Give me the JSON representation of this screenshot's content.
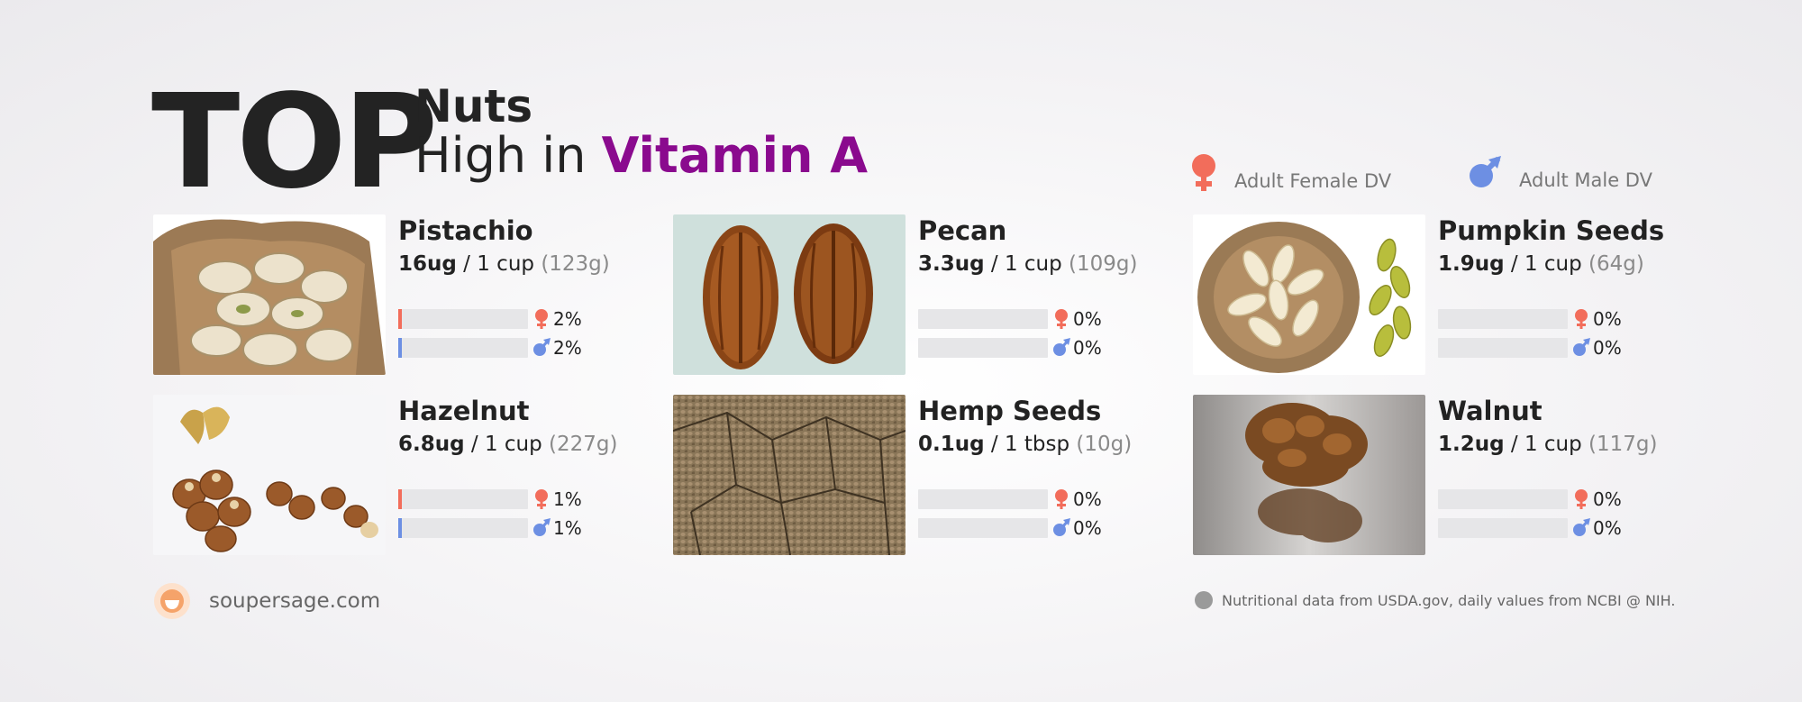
{
  "header": {
    "top": "TOP",
    "category": "Nuts",
    "subtitle_prefix": "High in ",
    "nutrient": "Vitamin A"
  },
  "legend": {
    "female": "Adult Female DV",
    "male": "Adult Male DV"
  },
  "colors": {
    "female": "#f26d5b",
    "male": "#6d8fe3",
    "nutrient": "#8a0a8e"
  },
  "items": [
    {
      "name": "Pistachio",
      "amount": "16ug",
      "serving": " / 1 cup ",
      "grams": "(123g)",
      "female_pct": "2%",
      "male_pct": "2%",
      "female_value": 2,
      "male_value": 2,
      "icon": "pistachio-photo"
    },
    {
      "name": "Pecan",
      "amount": "3.3ug",
      "serving": " / 1 cup ",
      "grams": "(109g)",
      "female_pct": "0%",
      "male_pct": "0%",
      "female_value": 0,
      "male_value": 0,
      "icon": "pecan-photo"
    },
    {
      "name": "Pumpkin Seeds",
      "amount": "1.9ug",
      "serving": " / 1 cup ",
      "grams": "(64g)",
      "female_pct": "0%",
      "male_pct": "0%",
      "female_value": 0,
      "male_value": 0,
      "icon": "pumpkin-seeds-photo"
    },
    {
      "name": "Hazelnut",
      "amount": "6.8ug",
      "serving": " / 1 cup ",
      "grams": "(227g)",
      "female_pct": "1%",
      "male_pct": "1%",
      "female_value": 1,
      "male_value": 1,
      "icon": "hazelnut-photo"
    },
    {
      "name": "Hemp Seeds",
      "amount": "0.1ug",
      "serving": " / 1 tbsp ",
      "grams": "(10g)",
      "female_pct": "0%",
      "male_pct": "0%",
      "female_value": 0,
      "male_value": 0,
      "icon": "hemp-seeds-photo"
    },
    {
      "name": "Walnut",
      "amount": "1.2ug",
      "serving": " / 1 cup ",
      "grams": "(117g)",
      "female_pct": "0%",
      "male_pct": "0%",
      "female_value": 0,
      "male_value": 0,
      "icon": "walnut-photo"
    }
  ],
  "footer": {
    "site": "soupersage.com",
    "note": "Nutritional data from USDA.gov, daily values from NCBI @ NIH."
  }
}
